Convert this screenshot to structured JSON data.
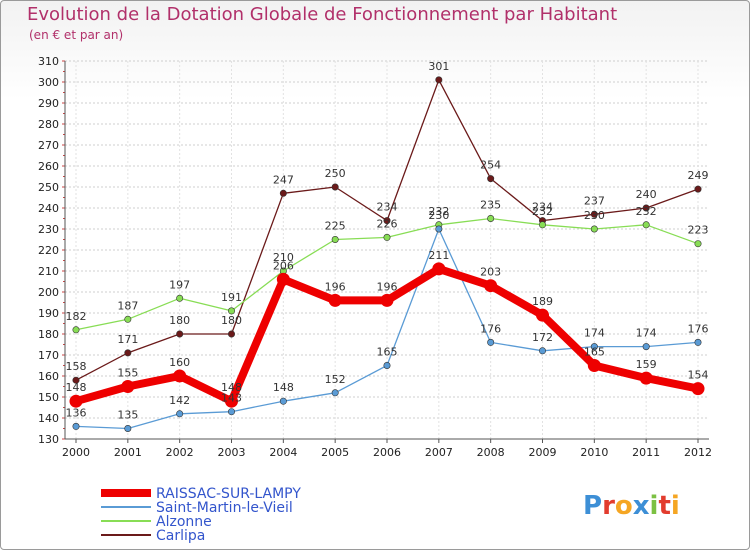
{
  "header": {
    "title": "Evolution de la Dotation Globale de Fonctionnement par Habitant",
    "subtitle": "(en € et par an)"
  },
  "chart_data": {
    "type": "line",
    "title": "Evolution de la Dotation Globale de Fonctionnement par Habitant",
    "subtitle": "(en € et par an)",
    "xlabel": "",
    "ylabel": "",
    "x": [
      "2000",
      "2001",
      "2002",
      "2003",
      "2004",
      "2005",
      "2006",
      "2007",
      "2008",
      "2009",
      "2010",
      "2011",
      "2012"
    ],
    "ylim": [
      130,
      310
    ],
    "ytick_step": 10,
    "grid": "horizontal dotted",
    "legend_position": "bottom-left",
    "series": [
      {
        "name": "RAISSAC-SUR-LAMPY",
        "color": "#ee0000",
        "values": [
          148,
          155,
          160,
          148,
          206,
          196,
          196,
          211,
          203,
          189,
          165,
          159,
          154
        ],
        "labels": [
          "148",
          "155",
          "160",
          "148",
          "206",
          "196",
          "196",
          "211",
          "203",
          "189",
          "165",
          "159",
          "154"
        ]
      },
      {
        "name": "Saint-Martin-le-Vieil",
        "color": "#5a9bd5",
        "values": [
          136,
          135,
          142,
          143,
          148,
          152,
          165,
          230,
          176,
          172,
          174,
          174,
          176
        ],
        "labels": [
          "136",
          "135",
          "142",
          "143",
          "148",
          "152",
          "165",
          "230",
          "176",
          "172",
          "174",
          "174",
          "176"
        ]
      },
      {
        "name": "Alzonne",
        "color": "#88dd55",
        "values": [
          182,
          187,
          197,
          191,
          210,
          225,
          226,
          232,
          235,
          232,
          230,
          232,
          223
        ],
        "labels": [
          "182",
          "187",
          "197",
          "191",
          "210",
          "225",
          "226",
          "232",
          "235",
          "232",
          "230",
          "232",
          "223"
        ]
      },
      {
        "name": "Carlipa",
        "color": "#6b1a1a",
        "values": [
          158,
          171,
          180,
          180,
          247,
          250,
          234,
          301,
          254,
          234,
          237,
          240,
          249
        ],
        "labels": [
          "158",
          "171",
          "180",
          "180",
          "247",
          "250",
          "234",
          "301",
          "254",
          "234",
          "237",
          "240",
          "249"
        ]
      }
    ]
  },
  "logo": {
    "letters": [
      "P",
      "r",
      "o",
      "x",
      "i",
      "t",
      "i"
    ],
    "colors": [
      "#3d8fd6",
      "#e23c2e",
      "#f5a623",
      "#3d8fd6",
      "#7cc143",
      "#e23c2e",
      "#f5a623"
    ]
  }
}
